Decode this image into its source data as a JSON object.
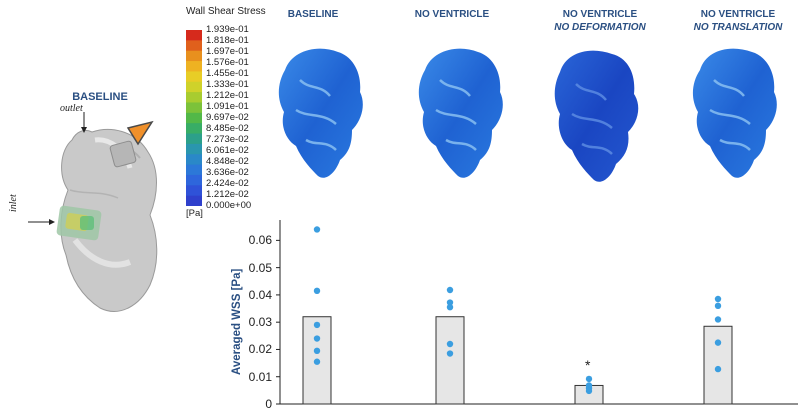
{
  "figure": {
    "left_anatomy": {
      "title": "BASELINE",
      "outlet_label": "outlet",
      "inlet_label": "inlet"
    },
    "legend": {
      "title": "Wall Shear Stress",
      "unit": "[Pa]",
      "values": [
        "1.939e-01",
        "1.818e-01",
        "1.697e-01",
        "1.576e-01",
        "1.455e-01",
        "1.333e-01",
        "1.212e-01",
        "1.091e-01",
        "9.697e-02",
        "8.485e-02",
        "7.273e-02",
        "6.061e-02",
        "4.848e-02",
        "3.636e-02",
        "2.424e-02",
        "1.212e-02",
        "0.000e+00"
      ],
      "colors": [
        "#d62a1c",
        "#e0601c",
        "#e8901e",
        "#eeb222",
        "#e8cd26",
        "#cfd22a",
        "#a8cc30",
        "#7cc23a",
        "#52b848",
        "#38ad66",
        "#2ca08a",
        "#2a96ae",
        "#2a88c8",
        "#2c78d8",
        "#2e66dc",
        "#2f52d8",
        "#2f40cc"
      ]
    },
    "models": [
      {
        "title": "BASELINE",
        "subtitle": ""
      },
      {
        "title": "NO VENTRICLE",
        "subtitle": ""
      },
      {
        "title": "NO VENTRICLE",
        "subtitle": "NO DEFORMATION"
      },
      {
        "title": "NO VENTRICLE",
        "subtitle": "NO TRANSLATION"
      }
    ],
    "colors": {
      "title_blue": "#2a4f82",
      "bar_fill": "#e6e6e6",
      "dot": "#3b9ee0"
    }
  },
  "chart_data": {
    "type": "bar",
    "categories": [
      "BASELINE",
      "NO VENTRICLE",
      "NO VENTRICLE NO DEFORMATION",
      "NO VENTRICLE NO TRANSLATION"
    ],
    "values": [
      0.032,
      0.032,
      0.0068,
      0.0285
    ],
    "points": [
      [
        0.064,
        0.0415,
        0.029,
        0.024,
        0.0195,
        0.0155
      ],
      [
        0.0418,
        0.0372,
        0.0355,
        0.022,
        0.0185
      ],
      [
        0.0092,
        0.0068,
        0.0058,
        0.0048
      ],
      [
        0.0385,
        0.036,
        0.031,
        0.0225,
        0.0128
      ]
    ],
    "annotations": [
      {
        "category": 2,
        "text": "*"
      }
    ],
    "ylabel": "Averaged WSS [Pa]",
    "ylim": [
      0,
      0.066
    ],
    "yticks": [
      "0",
      "0.01",
      "0.02",
      "0.03",
      "0.04",
      "0.05",
      "0.06"
    ],
    "ytick_values": [
      0,
      0.01,
      0.02,
      0.03,
      0.04,
      0.05,
      0.06
    ],
    "grid": false
  }
}
